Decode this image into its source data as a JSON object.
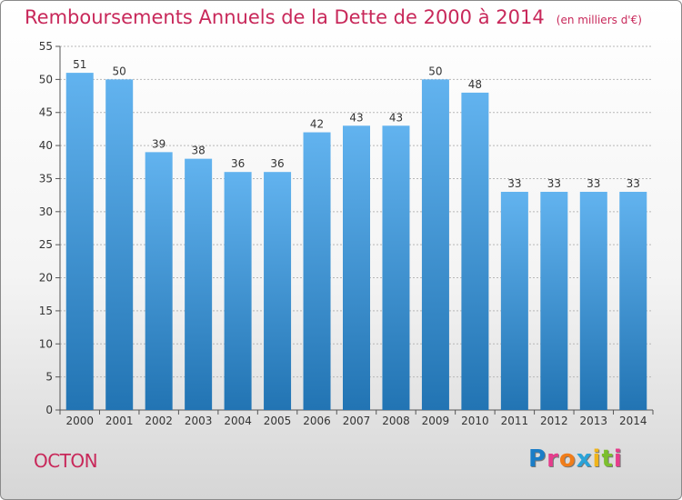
{
  "chart_data": {
    "type": "bar",
    "title": "Remboursements Annuels de la Dette de 2000 à 2014",
    "unit": "(en milliers d'€)",
    "categories": [
      "2000",
      "2001",
      "2002",
      "2003",
      "2004",
      "2005",
      "2006",
      "2007",
      "2008",
      "2009",
      "2010",
      "2011",
      "2012",
      "2013",
      "2014"
    ],
    "values": [
      51,
      50,
      39,
      38,
      36,
      36,
      42,
      43,
      43,
      50,
      48,
      33,
      33,
      33,
      33
    ],
    "ylim": [
      0,
      55
    ],
    "yticks": [
      "0",
      "5",
      "10",
      "15",
      "20",
      "25",
      "30",
      "35",
      "40",
      "45",
      "50",
      "55"
    ],
    "grid": true,
    "xlabel": "",
    "ylabel": ""
  },
  "commune": "OCTON",
  "logo": {
    "letters": [
      "P",
      "r",
      "o",
      "x",
      "i",
      "t",
      "i"
    ],
    "colors": [
      "#1a7dc7",
      "#e63c8c",
      "#f07d1a",
      "#2aa3d8",
      "#f0b41a",
      "#7cbf2e",
      "#e63c8c"
    ]
  },
  "colors": {
    "title": "#c8285a",
    "bar_top": "#62b3ef",
    "bar_bottom": "#2274b3"
  }
}
